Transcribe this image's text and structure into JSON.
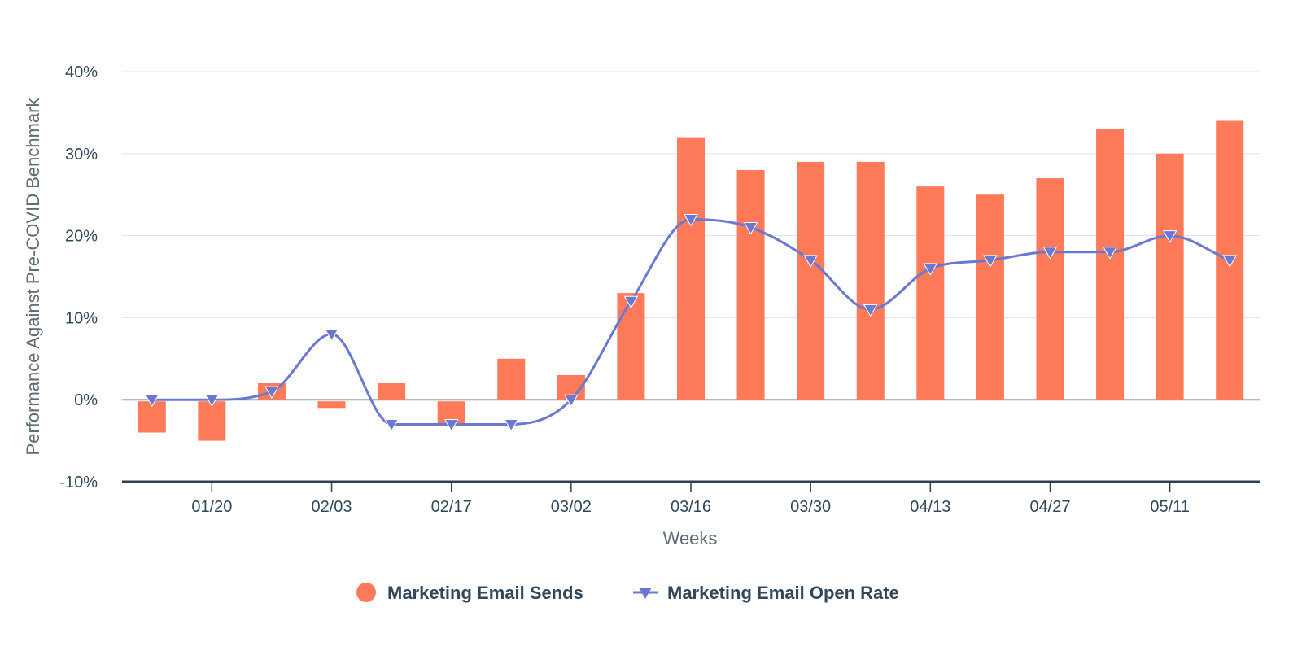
{
  "chart_data": {
    "type": "bar+line",
    "title": "",
    "xlabel": "Weeks",
    "ylabel": "Performance Against Pre-COVID Benchmark",
    "ylim": [
      -10,
      40
    ],
    "yticks": [
      40,
      30,
      20,
      10,
      0,
      -10
    ],
    "ytick_labels": [
      "40%",
      "30%",
      "20%",
      "10%",
      "0%",
      "-10%"
    ],
    "xtick_labels": [
      "01/20",
      "02/03",
      "02/17",
      "03/02",
      "03/16",
      "03/30",
      "04/13",
      "04/27",
      "05/11"
    ],
    "xtick_indices": [
      1,
      3,
      5,
      7,
      9,
      11,
      13,
      15,
      17
    ],
    "num_weeks": 19,
    "grid": true,
    "legend_position": "bottom-center",
    "series": [
      {
        "name": "Marketing Email Sends",
        "kind": "bar",
        "color": "#ff7a59",
        "values": [
          -4,
          -5,
          2,
          -1,
          2,
          -3,
          5,
          3,
          13,
          32,
          28,
          29,
          29,
          26,
          25,
          27,
          33,
          30,
          34
        ]
      },
      {
        "name": "Marketing Email Open Rate",
        "kind": "line",
        "marker": "triangle-down",
        "color": "#6a78d1",
        "values": [
          0,
          0,
          1,
          8,
          -3,
          -3,
          -3,
          0,
          12,
          22,
          21,
          17,
          11,
          16,
          17,
          18,
          18,
          20,
          17
        ]
      }
    ]
  }
}
